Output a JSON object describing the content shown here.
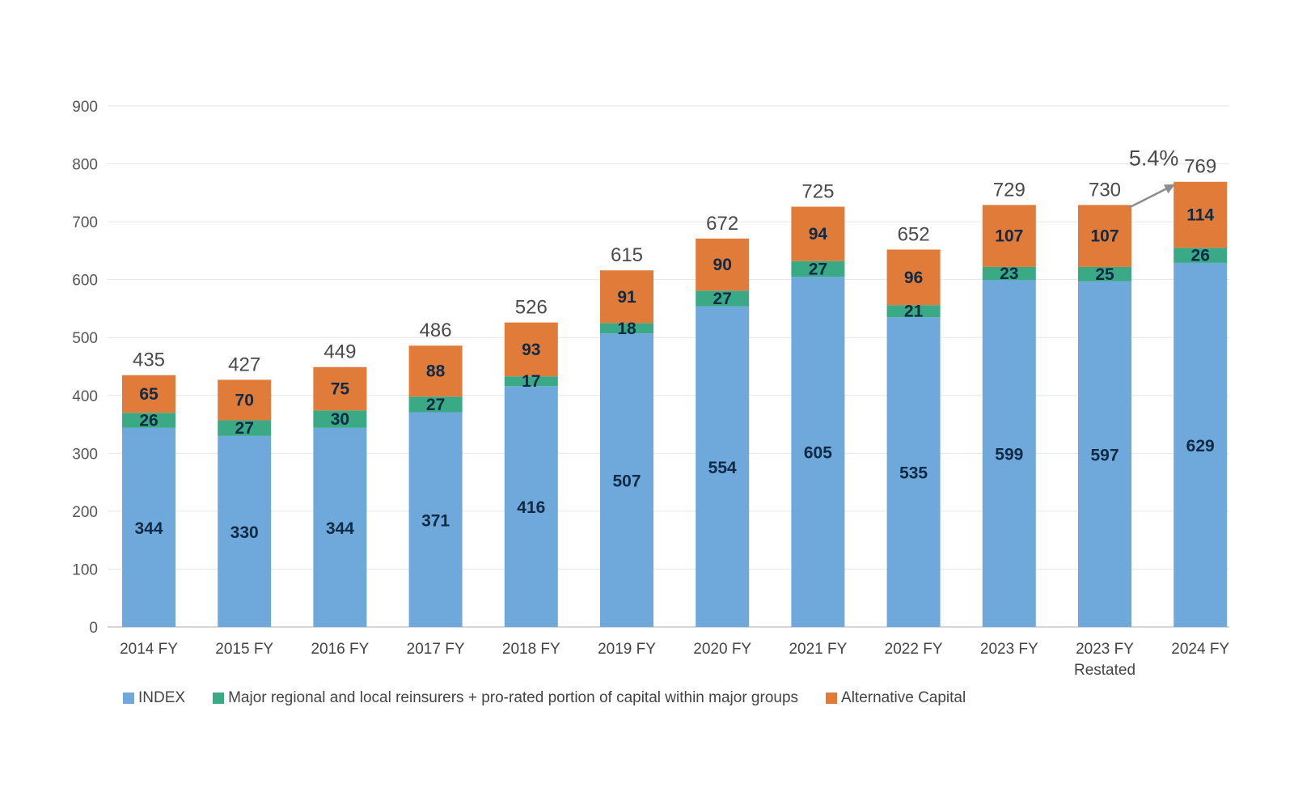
{
  "chart_data": {
    "type": "bar",
    "stacked": true,
    "title": "",
    "xlabel": "",
    "ylabel": "",
    "ylim": [
      0,
      900
    ],
    "yticks": [
      0,
      100,
      200,
      300,
      400,
      500,
      600,
      700,
      800,
      900
    ],
    "grid": true,
    "categories": [
      [
        "2014 FY"
      ],
      [
        "2015 FY"
      ],
      [
        "2016 FY"
      ],
      [
        "2017 FY"
      ],
      [
        "2018 FY"
      ],
      [
        "2019 FY"
      ],
      [
        "2020 FY"
      ],
      [
        "2021 FY"
      ],
      [
        "2022 FY"
      ],
      [
        "2023 FY"
      ],
      [
        "2023 FY",
        "Restated"
      ],
      [
        "2024 FY"
      ]
    ],
    "series": [
      {
        "name": "INDEX",
        "color": "#6fa9db",
        "values": [
          344,
          330,
          344,
          371,
          416,
          507,
          554,
          605,
          535,
          599,
          597,
          629
        ]
      },
      {
        "name": "Major regional and local reinsurers + pro-rated portion of capital within major groups",
        "color": "#3aa986",
        "values": [
          26,
          27,
          30,
          27,
          17,
          18,
          27,
          27,
          21,
          23,
          25,
          26
        ]
      },
      {
        "name": "Alternative Capital",
        "color": "#e07b39",
        "values": [
          65,
          70,
          75,
          88,
          93,
          91,
          90,
          94,
          96,
          107,
          107,
          114
        ]
      }
    ],
    "totals": [
      435,
      427,
      449,
      486,
      526,
      615,
      672,
      725,
      652,
      729,
      730,
      769
    ],
    "annotation": {
      "text": "5.4%",
      "from_category_index": 10,
      "to_category_index": 11
    },
    "legend_position": "bottom-left"
  }
}
